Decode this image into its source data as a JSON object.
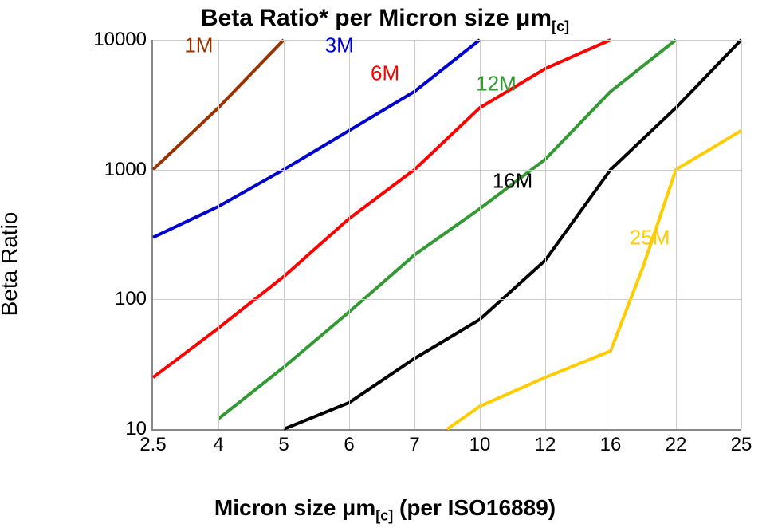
{
  "chart": {
    "type": "line-log",
    "title_html": "Beta Ratio* per Micron size <span class='mu'>μ</span>m<sub>[c]</sub>",
    "title_fontsize": 30,
    "y_label": "Beta Ratio",
    "y_label_fontsize": 28,
    "x_label_html": "Micron size <span class='mu'>μ</span>m<sub>[c]</sub> (per ISO16889)",
    "x_label_fontsize": 28,
    "background_color": "#ffffff",
    "grid_color": "#cccccc",
    "axis_color": "#888888",
    "tick_fontsize": 24,
    "series_label_fontsize": 26,
    "line_width": 4,
    "y_scale": "log",
    "y_min": 10,
    "y_max": 10000,
    "y_ticks": [
      10,
      100,
      1000,
      10000
    ],
    "x_ticks": [
      "2.5",
      "4",
      "5",
      "6",
      "7",
      "10",
      "12",
      "16",
      "22",
      "25"
    ],
    "series": [
      {
        "name": "1M",
        "color": "#993300",
        "label_x": 0.7,
        "label_y": 9000,
        "points": [
          [
            0,
            1000
          ],
          [
            1,
            3000
          ],
          [
            2,
            10000
          ]
        ]
      },
      {
        "name": "3M",
        "color": "#0000cc",
        "label_x": 2.85,
        "label_y": 9000,
        "points": [
          [
            0,
            300
          ],
          [
            1,
            520
          ],
          [
            2,
            1000
          ],
          [
            3,
            2000
          ],
          [
            4,
            4000
          ],
          [
            5,
            10000
          ]
        ]
      },
      {
        "name": "6M",
        "color": "#ff0000",
        "label_x": 3.55,
        "label_y": 5500,
        "points": [
          [
            0,
            25
          ],
          [
            1,
            60
          ],
          [
            2,
            150
          ],
          [
            3,
            420
          ],
          [
            4,
            1000
          ],
          [
            5,
            3000
          ],
          [
            6,
            6000
          ],
          [
            7,
            10000
          ]
        ]
      },
      {
        "name": "12M",
        "color": "#339933",
        "label_x": 5.25,
        "label_y": 4600,
        "points": [
          [
            1,
            12
          ],
          [
            2,
            30
          ],
          [
            3,
            80
          ],
          [
            4,
            220
          ],
          [
            5,
            500
          ],
          [
            6,
            1200
          ],
          [
            7,
            4000
          ],
          [
            8,
            10000
          ]
        ]
      },
      {
        "name": "16M",
        "color": "#000000",
        "label_x": 5.5,
        "label_y": 820,
        "points": [
          [
            2,
            10
          ],
          [
            3,
            16
          ],
          [
            4,
            35
          ],
          [
            5,
            70
          ],
          [
            6,
            200
          ],
          [
            7,
            1000
          ],
          [
            8,
            3000
          ],
          [
            9,
            10000
          ]
        ]
      },
      {
        "name": "25M",
        "color": "#ffcc00",
        "label_x": 7.6,
        "label_y": 300,
        "points": [
          [
            4.5,
            10
          ],
          [
            5,
            15
          ],
          [
            6,
            25
          ],
          [
            7,
            40
          ],
          [
            7.5,
            180
          ],
          [
            8,
            1000
          ],
          [
            9,
            2000
          ]
        ]
      }
    ]
  }
}
